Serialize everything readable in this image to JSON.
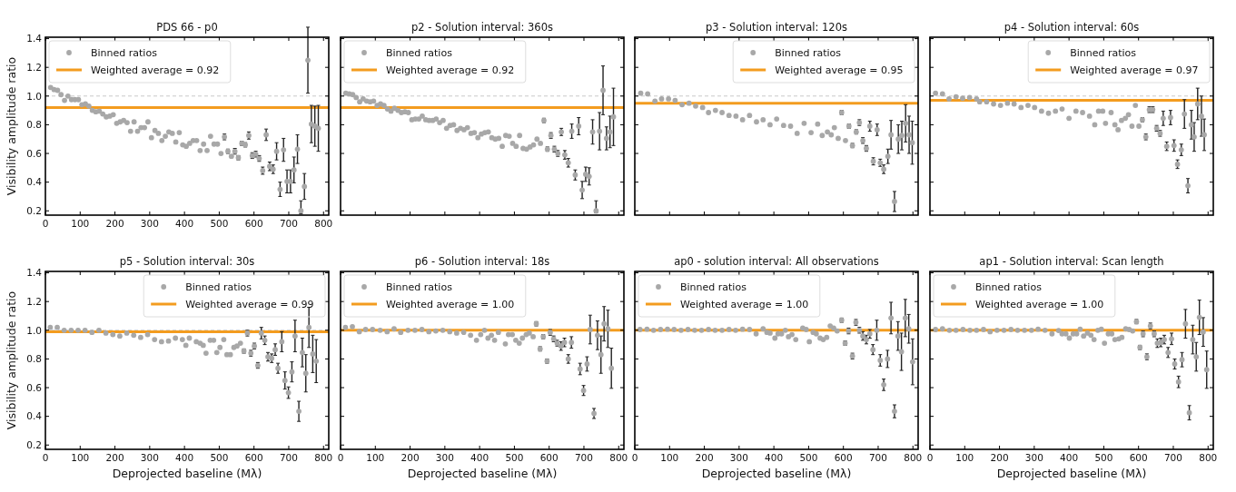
{
  "chart_data": [
    {
      "type": "scatter",
      "title": "PDS 66 - p0",
      "ylabel": "Visibility amplitude ratio",
      "xlim": [
        0,
        815
      ],
      "ylim": [
        0.17,
        1.41
      ],
      "xticks": [
        0,
        100,
        200,
        300,
        400,
        500,
        600,
        700,
        800
      ],
      "yticks": [
        0.2,
        0.4,
        0.6,
        0.8,
        {
          "value": 1,
          "label": "1.0"
        },
        1.2,
        1.4
      ],
      "legend": "top left",
      "marker": "circle",
      "x": [
        15,
        25,
        35,
        45,
        55,
        65,
        75,
        85,
        95,
        105,
        115,
        125,
        135,
        145,
        155,
        165,
        175,
        185,
        195,
        205,
        215,
        225,
        235,
        245,
        255,
        265,
        275,
        285,
        295,
        305,
        315,
        325,
        335,
        345,
        355,
        365,
        375,
        385,
        395,
        405,
        415,
        425,
        435,
        445,
        455,
        465,
        475,
        485,
        495,
        505,
        515,
        525,
        535,
        545,
        555,
        565,
        575,
        585,
        595,
        605,
        615,
        625,
        635,
        645,
        655,
        665,
        675,
        685,
        695,
        705,
        715,
        725,
        735,
        745,
        755,
        765,
        775,
        785
      ],
      "series": [
        {
          "name": "Binned ratios",
          "color": "#a8a8a8",
          "values": [
            1.06,
            1.045,
            1.04,
            1.01,
            0.97,
            1.0,
            0.975,
            0.975,
            0.975,
            0.94,
            0.945,
            0.93,
            0.9,
            0.89,
            0.895,
            0.875,
            0.855,
            0.86,
            0.87,
            0.81,
            0.82,
            0.83,
            0.815,
            0.755,
            0.82,
            0.755,
            0.78,
            0.78,
            0.82,
            0.71,
            0.76,
            0.74,
            0.69,
            0.72,
            0.75,
            0.74,
            0.68,
            0.745,
            0.66,
            0.65,
            0.67,
            0.69,
            0.69,
            0.62,
            0.665,
            0.62,
            0.72,
            0.665,
            0.665,
            0.6,
            0.715,
            0.615,
            0.58,
            0.615,
            0.57,
            0.67,
            0.66,
            0.725,
            0.585,
            0.595,
            0.565,
            0.48,
            0.73,
            0.51,
            0.49,
            0.615,
            0.35,
            0.625,
            0.405,
            0.405,
            0.485,
            0.63,
            0.2,
            0.37,
            1.25,
            0.805,
            0.79,
            0.775
          ],
          "errors": [
            null,
            null,
            null,
            null,
            null,
            null,
            null,
            null,
            null,
            null,
            null,
            null,
            null,
            null,
            null,
            null,
            null,
            null,
            null,
            null,
            null,
            null,
            null,
            null,
            null,
            null,
            null,
            null,
            null,
            null,
            null,
            null,
            null,
            null,
            null,
            null,
            null,
            null,
            null,
            null,
            null,
            null,
            null,
            null,
            null,
            null,
            null,
            null,
            null,
            null,
            0.02,
            0.015,
            null,
            0.02,
            0.015,
            0.015,
            0.015,
            0.025,
            0.02,
            0.02,
            0.02,
            0.025,
            0.04,
            0.03,
            0.03,
            0.06,
            0.05,
            0.08,
            0.08,
            0.08,
            0.09,
            0.1,
            [
              0.18,
              0.27
            ],
            0.09,
            0.23,
            0.13,
            0.14,
            0.16
          ]
        }
      ],
      "ref_lines": [
        {
          "axis": "y",
          "value": 1,
          "color": "#c8c8c8",
          "line_style": "dashed"
        },
        {
          "axis": "y",
          "value": 0.92,
          "label": "Weighted average = 0.92",
          "color": "#f39c1f"
        }
      ]
    },
    {
      "type": "scatter",
      "title": "p2 - Solution interval: 360s",
      "xlim": [
        0,
        815
      ],
      "ylim": [
        0.17,
        1.41
      ],
      "xticks": [
        0,
        100,
        200,
        300,
        400,
        500,
        600,
        700,
        800
      ],
      "yticks": [
        0.2,
        0.4,
        0.6,
        0.8,
        1,
        1.2,
        1.4
      ],
      "tick_labels": false,
      "legend": "top left",
      "marker": "circle",
      "x": [
        15,
        25,
        35,
        45,
        55,
        65,
        75,
        85,
        95,
        105,
        115,
        125,
        135,
        145,
        155,
        165,
        175,
        185,
        195,
        205,
        215,
        225,
        235,
        245,
        255,
        265,
        275,
        285,
        295,
        305,
        315,
        325,
        335,
        345,
        355,
        365,
        375,
        385,
        395,
        405,
        415,
        425,
        435,
        445,
        455,
        465,
        475,
        485,
        495,
        505,
        515,
        525,
        535,
        545,
        555,
        565,
        575,
        585,
        595,
        605,
        615,
        625,
        635,
        645,
        655,
        665,
        675,
        685,
        695,
        705,
        715,
        725,
        735,
        745,
        755,
        765,
        775,
        785
      ],
      "series": [
        {
          "name": "Binned ratios",
          "color": "#a8a8a8",
          "values": [
            1.02,
            1.015,
            1.01,
            0.99,
            0.96,
            0.98,
            0.965,
            0.96,
            0.965,
            0.935,
            0.945,
            0.935,
            0.91,
            0.895,
            0.915,
            0.9,
            0.885,
            0.89,
            0.885,
            0.835,
            0.84,
            0.84,
            0.86,
            0.835,
            0.83,
            0.83,
            0.84,
            0.815,
            0.83,
            0.775,
            0.795,
            0.8,
            0.76,
            0.775,
            0.765,
            0.78,
            0.74,
            0.745,
            0.71,
            0.735,
            0.745,
            0.75,
            0.71,
            0.7,
            0.705,
            0.65,
            0.725,
            0.72,
            0.67,
            0.65,
            0.725,
            0.635,
            0.63,
            0.645,
            0.66,
            0.7,
            0.67,
            0.83,
            0.63,
            0.725,
            0.63,
            0.6,
            0.75,
            0.59,
            0.535,
            0.755,
            0.45,
            0.79,
            0.345,
            0.455,
            0.44,
            0.75,
            0.2,
            0.755,
            1.04,
            0.705,
            0.75,
            0.855
          ],
          "errors": [
            null,
            null,
            null,
            null,
            null,
            null,
            null,
            null,
            null,
            null,
            null,
            null,
            null,
            null,
            null,
            null,
            null,
            null,
            null,
            null,
            null,
            null,
            null,
            null,
            null,
            null,
            null,
            null,
            null,
            null,
            null,
            null,
            null,
            null,
            null,
            null,
            null,
            null,
            null,
            null,
            null,
            null,
            null,
            null,
            null,
            null,
            null,
            null,
            null,
            null,
            null,
            null,
            null,
            null,
            null,
            null,
            null,
            0.015,
            0.015,
            0.02,
            0.02,
            0.02,
            0.025,
            0.03,
            0.03,
            0.05,
            0.035,
            0.06,
            0.06,
            0.05,
            0.06,
            0.085,
            [
              0.185,
              0.27
            ],
            0.13,
            0.17,
            0.08,
            0.11,
            0.2
          ]
        }
      ],
      "ref_lines": [
        {
          "axis": "y",
          "value": 1,
          "color": "#c8c8c8",
          "line_style": "dashed"
        },
        {
          "axis": "y",
          "value": 0.92,
          "label": "Weighted average = 0.92",
          "color": "#f39c1f"
        }
      ]
    },
    {
      "type": "scatter",
      "title": "p3 - Solution interval: 120s",
      "xlim": [
        0,
        815
      ],
      "ylim": [
        0.17,
        1.41
      ],
      "xticks": [
        0,
        100,
        200,
        300,
        400,
        500,
        600,
        700,
        800
      ],
      "yticks": [
        0.2,
        0.4,
        0.6,
        0.8,
        1,
        1.2,
        1.4
      ],
      "tick_labels": false,
      "legend": "top right",
      "marker": "circle",
      "x": [
        17,
        37,
        58,
        77,
        97,
        116,
        136,
        156,
        175,
        195,
        212,
        232,
        251,
        271,
        291,
        310,
        330,
        350,
        369,
        389,
        408,
        428,
        448,
        467,
        487,
        507,
        526,
        539,
        554,
        565,
        574,
        585,
        595,
        606,
        616,
        626,
        637,
        646,
        656,
        666,
        676,
        686,
        697,
        706,
        716,
        728,
        737,
        747,
        758,
        768,
        779,
        789,
        798
      ],
      "series": [
        {
          "name": "Binned ratios",
          "color": "#a8a8a8",
          "values": [
            1.02,
            1.015,
            0.965,
            0.98,
            0.98,
            0.97,
            0.94,
            0.95,
            0.93,
            0.92,
            0.885,
            0.9,
            0.885,
            0.865,
            0.86,
            0.835,
            0.865,
            0.82,
            0.835,
            0.8,
            0.84,
            0.795,
            0.79,
            0.74,
            0.81,
            0.745,
            0.805,
            0.725,
            0.75,
            0.73,
            0.78,
            0.705,
            0.885,
            0.69,
            0.79,
            0.655,
            0.75,
            0.815,
            0.69,
            0.635,
            0.79,
            0.545,
            0.765,
            0.535,
            0.49,
            0.58,
            0.73,
            0.265,
            0.7,
            0.725,
            0.81,
            0.73,
            0.675
          ],
          "errors": [
            null,
            null,
            null,
            null,
            null,
            null,
            null,
            null,
            null,
            null,
            null,
            null,
            null,
            null,
            null,
            null,
            null,
            null,
            null,
            null,
            null,
            null,
            null,
            null,
            null,
            null,
            null,
            null,
            null,
            null,
            null,
            null,
            0.015,
            null,
            0.015,
            0.015,
            0.015,
            0.02,
            0.02,
            0.02,
            0.035,
            0.025,
            0.04,
            0.025,
            0.03,
            0.05,
            0.1,
            0.07,
            0.1,
            0.1,
            0.13,
            0.13,
            0.15
          ]
        }
      ],
      "ref_lines": [
        {
          "axis": "y",
          "value": 1,
          "color": "#c8c8c8",
          "line_style": "dashed"
        },
        {
          "axis": "y",
          "value": 0.95,
          "label": "Weighted average = 0.95",
          "color": "#f39c1f"
        }
      ]
    },
    {
      "type": "scatter",
      "title": "p4 - Solution interval: 60s",
      "xlim": [
        0,
        815
      ],
      "ylim": [
        0.17,
        1.41
      ],
      "xticks": [
        0,
        100,
        200,
        300,
        400,
        500,
        600,
        700,
        800
      ],
      "yticks": [
        0.2,
        0.4,
        0.6,
        0.8,
        1,
        1.2,
        1.4
      ],
      "tick_labels": false,
      "legend": "top right",
      "marker": "circle",
      "x": [
        16,
        36,
        55,
        75,
        94,
        114,
        134,
        143,
        163,
        183,
        203,
        223,
        242,
        262,
        282,
        301,
        321,
        341,
        361,
        380,
        400,
        420,
        439,
        459,
        474,
        485,
        497,
        505,
        521,
        532,
        541,
        551,
        562,
        571,
        581,
        591,
        601,
        611,
        621,
        631,
        641,
        652,
        662,
        671,
        681,
        692,
        702,
        712,
        723,
        732,
        742,
        752,
        760,
        770,
        781,
        789
      ],
      "series": [
        {
          "name": "Binned ratios",
          "color": "#a8a8a8",
          "values": [
            1.02,
            1.015,
            0.98,
            0.995,
            0.985,
            0.99,
            0.98,
            0.96,
            0.96,
            0.945,
            0.935,
            0.95,
            0.945,
            0.92,
            0.935,
            0.92,
            0.895,
            0.88,
            0.895,
            0.91,
            0.845,
            0.895,
            0.885,
            0.86,
            0.8,
            0.895,
            0.895,
            0.81,
            0.885,
            0.8,
            0.765,
            0.83,
            0.845,
            0.87,
            0.79,
            0.935,
            0.79,
            0.835,
            0.715,
            0.905,
            0.905,
            0.775,
            0.74,
            0.845,
            0.65,
            0.85,
            0.655,
            0.525,
            0.625,
            0.875,
            0.375,
            0.8,
            0.715,
            0.945,
            0.86,
            0.73
          ],
          "errors": [
            null,
            null,
            null,
            null,
            null,
            null,
            null,
            null,
            null,
            null,
            null,
            null,
            null,
            null,
            null,
            null,
            null,
            null,
            null,
            null,
            null,
            null,
            null,
            null,
            null,
            null,
            null,
            null,
            null,
            null,
            null,
            null,
            null,
            null,
            null,
            null,
            null,
            0.015,
            0.02,
            0.02,
            0.02,
            0.02,
            0.02,
            0.05,
            0.03,
            0.05,
            0.04,
            0.03,
            0.04,
            0.1,
            0.05,
            0.1,
            0.1,
            0.11,
            0.14,
            0.11
          ]
        }
      ],
      "ref_lines": [
        {
          "axis": "y",
          "value": 1,
          "color": "#c8c8c8",
          "line_style": "dashed"
        },
        {
          "axis": "y",
          "value": 0.97,
          "label": "Weighted average = 0.97",
          "color": "#f39c1f"
        }
      ]
    },
    {
      "type": "scatter",
      "title": "p5 - Solution interval: 30s",
      "xlabel": "Deprojected baseline (Mλ)",
      "ylabel": "Visibility amplitude ratio",
      "xlim": [
        0,
        815
      ],
      "ylim": [
        0.17,
        1.41
      ],
      "xticks": [
        0,
        100,
        200,
        300,
        400,
        500,
        600,
        700,
        800
      ],
      "yticks": [
        0.2,
        0.4,
        0.6,
        0.8,
        {
          "value": 1,
          "label": "1.0"
        },
        1.2,
        1.4
      ],
      "legend": "top right",
      "marker": "circle",
      "x": [
        14,
        34,
        54,
        74,
        94,
        114,
        134,
        154,
        174,
        194,
        214,
        234,
        254,
        274,
        294,
        314,
        334,
        354,
        374,
        394,
        404,
        414,
        434,
        445,
        454,
        462,
        474,
        484,
        493,
        502,
        513,
        522,
        532,
        542,
        551,
        561,
        571,
        581,
        591,
        601,
        611,
        621,
        631,
        640,
        651,
        661,
        669,
        680,
        689,
        699,
        709,
        718,
        729,
        739,
        749,
        758,
        769,
        779
      ],
      "series": [
        {
          "name": "Binned ratios",
          "color": "#a8a8a8",
          "values": [
            1.02,
            1.02,
            1.0,
            1.0,
            1.0,
            1.0,
            0.985,
            1.0,
            0.98,
            0.97,
            0.96,
            0.98,
            0.965,
            0.95,
            0.97,
            0.935,
            0.92,
            0.925,
            0.945,
            0.935,
            0.895,
            0.945,
            0.92,
            0.91,
            0.895,
            0.84,
            0.93,
            0.93,
            0.845,
            0.88,
            0.935,
            0.83,
            0.83,
            0.88,
            0.89,
            0.91,
            0.855,
            0.98,
            0.84,
            0.89,
            0.755,
            0.98,
            0.93,
            0.815,
            0.805,
            0.865,
            0.735,
            0.92,
            0.65,
            0.565,
            0.71,
            0.96,
            0.435,
            0.845,
            0.7,
            1.02,
            0.835,
            0.785
          ],
          "errors": [
            null,
            null,
            null,
            null,
            null,
            null,
            null,
            null,
            null,
            null,
            null,
            null,
            null,
            null,
            null,
            null,
            null,
            null,
            null,
            null,
            null,
            null,
            null,
            null,
            null,
            null,
            null,
            null,
            null,
            null,
            null,
            null,
            null,
            null,
            null,
            null,
            0.015,
            0.02,
            0.02,
            0.02,
            0.02,
            0.04,
            0.03,
            0.03,
            0.03,
            0.04,
            0.035,
            0.07,
            0.06,
            0.04,
            0.07,
            0.11,
            0.07,
            0.1,
            0.13,
            0.14,
            0.13,
            0.15
          ]
        }
      ],
      "ref_lines": [
        {
          "axis": "y",
          "value": 1,
          "color": "#c8c8c8",
          "line_style": "dashed"
        },
        {
          "axis": "y",
          "value": 0.99,
          "label": "Weighted average = 0.99",
          "color": "#f39c1f"
        }
      ]
    },
    {
      "type": "scatter",
      "title": "p6 - Solution interval: 18s",
      "xlabel": "Deprojected baseline (Mλ)",
      "xlim": [
        0,
        815
      ],
      "ylim": [
        0.17,
        1.41
      ],
      "xticks": [
        0,
        100,
        200,
        300,
        400,
        500,
        600,
        700,
        800
      ],
      "yticks": [
        0.2,
        0.4,
        0.6,
        0.8,
        1,
        1.2,
        1.4
      ],
      "tick_labels": "x",
      "legend": "top left",
      "marker": "circle",
      "x": [
        14,
        34,
        54,
        72,
        92,
        114,
        134,
        154,
        173,
        194,
        214,
        234,
        254,
        274,
        294,
        314,
        334,
        354,
        374,
        391,
        403,
        414,
        424,
        434,
        443,
        454,
        474,
        483,
        494,
        504,
        514,
        523,
        534,
        543,
        554,
        563,
        574,
        583,
        594,
        603,
        613,
        623,
        634,
        644,
        655,
        664,
        689,
        699,
        709,
        718,
        729,
        739,
        749,
        758,
        769,
        779
      ],
      "series": [
        {
          "name": "Binned ratios",
          "color": "#a8a8a8",
          "values": [
            1.02,
            1.025,
            0.99,
            1.005,
            1.005,
            1.0,
            0.99,
            1.01,
            0.985,
            1.0,
            1.0,
            1.005,
            0.99,
            0.995,
            1.0,
            0.99,
            0.98,
            0.985,
            0.965,
            0.93,
            0.97,
            1.0,
            0.945,
            0.965,
            0.93,
            0.985,
            0.905,
            0.97,
            0.97,
            0.93,
            0.91,
            0.945,
            0.97,
            0.98,
            0.955,
            1.045,
            0.87,
            0.955,
            0.785,
            0.985,
            0.94,
            0.91,
            0.89,
            0.915,
            0.8,
            0.915,
            0.73,
            0.58,
            0.765,
            1.005,
            0.42,
            0.965,
            0.83,
            1.045,
            1.01,
            0.735
          ],
          "errors": [
            null,
            null,
            null,
            null,
            null,
            null,
            null,
            null,
            null,
            null,
            null,
            null,
            null,
            null,
            null,
            null,
            null,
            null,
            null,
            null,
            null,
            null,
            null,
            null,
            null,
            null,
            null,
            null,
            null,
            null,
            null,
            null,
            null,
            null,
            null,
            0.015,
            0.015,
            0.015,
            0.015,
            0.02,
            0.02,
            0.02,
            0.03,
            0.03,
            0.03,
            0.04,
            0.04,
            0.035,
            0.05,
            0.1,
            0.035,
            0.1,
            0.13,
            0.12,
            0.13,
            0.14
          ]
        }
      ],
      "ref_lines": [
        {
          "axis": "y",
          "value": 1,
          "label": "Weighted average = 1.00",
          "color": "#f39c1f"
        }
      ]
    },
    {
      "type": "scatter",
      "title": "ap0 - solution interval: All observations",
      "xlabel": "Deprojected baseline (Mλ)",
      "xlim": [
        0,
        815
      ],
      "ylim": [
        0.17,
        1.41
      ],
      "xticks": [
        0,
        100,
        200,
        300,
        400,
        500,
        600,
        700,
        800
      ],
      "yticks": [
        0.2,
        0.4,
        0.6,
        0.8,
        1,
        1.2,
        1.4
      ],
      "tick_labels": "x",
      "legend": "top left",
      "marker": "circle",
      "x": [
        15,
        35,
        54,
        74,
        94,
        113,
        133,
        153,
        172,
        192,
        212,
        231,
        251,
        271,
        290,
        310,
        330,
        349,
        369,
        380,
        389,
        403,
        412,
        422,
        433,
        442,
        452,
        463,
        483,
        493,
        502,
        513,
        522,
        533,
        542,
        552,
        562,
        572,
        582,
        595,
        605,
        615,
        626,
        636,
        646,
        656,
        666,
        676,
        685,
        696,
        706,
        716,
        727,
        737,
        747,
        757,
        767,
        778,
        788,
        799
      ],
      "series": [
        {
          "name": "Binned ratios",
          "color": "#a8a8a8",
          "values": [
            1.005,
            1.007,
            1.0,
            1.005,
            1.007,
            1.005,
            1.0,
            1.005,
            1.0,
            1.0,
            1.005,
            1.0,
            1.0,
            1.005,
            1.0,
            1.007,
            1.005,
            0.975,
            1.01,
            0.985,
            0.98,
            0.945,
            0.975,
            0.975,
            1.0,
            0.955,
            0.97,
            0.935,
            1.015,
            1.005,
            0.92,
            0.985,
            0.975,
            0.945,
            0.935,
            0.95,
            1.03,
            1.015,
            0.995,
            1.07,
            0.91,
            0.995,
            0.82,
            1.055,
            1.0,
            0.96,
            0.935,
            0.975,
            0.865,
            1.0,
            0.79,
            0.62,
            0.8,
            1.085,
            0.435,
            0.96,
            0.85,
            1.085,
            1.01,
            0.78
          ],
          "errors": [
            null,
            null,
            null,
            null,
            null,
            null,
            null,
            null,
            null,
            null,
            null,
            null,
            null,
            null,
            null,
            null,
            null,
            null,
            null,
            null,
            null,
            null,
            null,
            null,
            null,
            null,
            null,
            null,
            null,
            null,
            null,
            null,
            null,
            null,
            null,
            null,
            null,
            null,
            null,
            0.015,
            0.015,
            0.02,
            0.02,
            0.02,
            0.02,
            0.03,
            0.03,
            0.03,
            0.035,
            0.07,
            0.04,
            0.04,
            0.06,
            0.11,
            0.045,
            0.1,
            0.13,
            0.13,
            0.1,
            0.16
          ]
        }
      ],
      "ref_lines": [
        {
          "axis": "y",
          "value": 1,
          "label": "Weighted average = 1.00",
          "color": "#f39c1f"
        }
      ]
    },
    {
      "type": "scatter",
      "title": "ap1 - Solution interval: Scan length",
      "xlabel": "Deprojected baseline (Mλ)",
      "xlim": [
        0,
        815
      ],
      "ylim": [
        0.17,
        1.41
      ],
      "xticks": [
        0,
        100,
        200,
        300,
        400,
        500,
        600,
        700,
        800
      ],
      "yticks": [
        0.2,
        0.4,
        0.6,
        0.8,
        1,
        1.2,
        1.4
      ],
      "tick_labels": "x",
      "legend": "top left",
      "marker": "circle",
      "x": [
        16,
        36,
        56,
        75,
        95,
        115,
        134,
        154,
        173,
        193,
        213,
        233,
        252,
        272,
        292,
        311,
        331,
        351,
        370,
        380,
        391,
        401,
        412,
        422,
        432,
        442,
        453,
        463,
        472,
        483,
        493,
        502,
        513,
        523,
        532,
        543,
        552,
        563,
        573,
        583,
        594,
        604,
        613,
        624,
        634,
        645,
        654,
        664,
        674,
        685,
        695,
        704,
        715,
        725,
        735,
        746,
        756,
        766,
        775,
        786,
        796
      ],
      "series": [
        {
          "name": "Binned ratios",
          "color": "#a8a8a8",
          "values": [
            1.005,
            1.01,
            1.0,
            1.0,
            1.005,
            1.0,
            1.0,
            1.005,
            0.99,
            1.0,
            1.0,
            1.005,
            1.0,
            1.0,
            1.0,
            1.007,
            1.0,
            0.975,
            0.998,
            0.975,
            0.975,
            0.945,
            0.975,
            0.975,
            1.007,
            0.96,
            0.98,
            0.965,
            0.935,
            1.0,
            1.007,
            0.91,
            0.975,
            0.975,
            0.935,
            0.94,
            0.95,
            1.01,
            1.005,
            0.995,
            1.06,
            0.88,
            0.975,
            0.815,
            1.03,
            0.975,
            0.91,
            0.915,
            0.935,
            0.845,
            0.94,
            0.765,
            0.64,
            0.795,
            1.045,
            0.425,
            0.935,
            0.815,
            1.09,
            0.988,
            0.725
          ],
          "errors": [
            null,
            null,
            null,
            null,
            null,
            null,
            null,
            null,
            null,
            null,
            null,
            null,
            null,
            null,
            null,
            null,
            null,
            null,
            null,
            null,
            null,
            null,
            null,
            null,
            null,
            null,
            null,
            null,
            null,
            null,
            null,
            null,
            null,
            null,
            null,
            null,
            null,
            null,
            null,
            null,
            0.015,
            0.015,
            0.02,
            0.02,
            0.02,
            0.02,
            0.03,
            0.03,
            0.03,
            0.035,
            0.04,
            0.035,
            0.04,
            0.05,
            0.1,
            0.05,
            0.1,
            0.1,
            0.12,
            0.1,
            0.13
          ]
        }
      ],
      "ref_lines": [
        {
          "axis": "y",
          "value": 1,
          "label": "Weighted average = 1.00",
          "color": "#f39c1f"
        }
      ]
    }
  ]
}
